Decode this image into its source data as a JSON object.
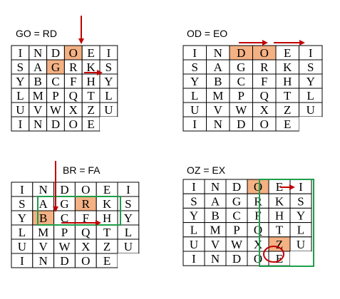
{
  "colors": {
    "highlight": "#F4B183",
    "arrow": "#C00000",
    "box": "#1E9E4A",
    "grid": "#000000"
  },
  "panels": [
    {
      "label": "GO = RD",
      "rows": [
        [
          "I",
          "N",
          "D",
          "O",
          "E",
          "I"
        ],
        [
          "S",
          "A",
          "G",
          "R",
          "K",
          "S"
        ],
        [
          "Y",
          "B",
          "C",
          "F",
          "H",
          "Y"
        ],
        [
          "L",
          "M",
          "P",
          "Q",
          "T",
          "L"
        ],
        [
          "U",
          "V",
          "W",
          "X",
          "Z",
          "U"
        ],
        [
          "I",
          "N",
          "D",
          "O",
          "E",
          ""
        ]
      ],
      "highlights": [
        [
          0,
          3
        ],
        [
          1,
          2
        ]
      ],
      "circled": []
    },
    {
      "label": "OD = EO",
      "rows": [
        [
          "I",
          "N",
          "D",
          "O",
          "E",
          "I"
        ],
        [
          "S",
          "A",
          "G",
          "R",
          "K",
          "S"
        ],
        [
          "Y",
          "B",
          "C",
          "F",
          "H",
          "Y"
        ],
        [
          "L",
          "M",
          "P",
          "Q",
          "T",
          "L"
        ],
        [
          "U",
          "V",
          "W",
          "X",
          "Z",
          "U"
        ],
        [
          "I",
          "N",
          "D",
          "O",
          "E",
          ""
        ]
      ],
      "highlights": [
        [
          0,
          2
        ],
        [
          0,
          3
        ]
      ],
      "circled": []
    },
    {
      "label": "BR = FA",
      "rows": [
        [
          "I",
          "N",
          "D",
          "O",
          "E",
          "I"
        ],
        [
          "S",
          "A",
          "G",
          "R",
          "K",
          "S"
        ],
        [
          "Y",
          "B",
          "C",
          "F",
          "H",
          "Y"
        ],
        [
          "L",
          "M",
          "P",
          "Q",
          "T",
          "L"
        ],
        [
          "U",
          "V",
          "W",
          "X",
          "Z",
          "U"
        ],
        [
          "I",
          "N",
          "D",
          "O",
          "E",
          ""
        ]
      ],
      "highlights": [
        [
          1,
          3
        ],
        [
          2,
          1
        ]
      ],
      "circled": []
    },
    {
      "label": "OZ = EX",
      "rows": [
        [
          "I",
          "N",
          "D",
          "O",
          "E",
          "I"
        ],
        [
          "S",
          "A",
          "G",
          "R",
          "K",
          "S"
        ],
        [
          "Y",
          "B",
          "C",
          "F",
          "H",
          "Y"
        ],
        [
          "L",
          "M",
          "P",
          "Q",
          "T",
          "L"
        ],
        [
          "U",
          "V",
          "W",
          "X",
          "Z",
          "U"
        ],
        [
          "I",
          "N",
          "D",
          "O",
          "E",
          ""
        ]
      ],
      "highlights": [
        [
          0,
          3
        ],
        [
          4,
          4
        ]
      ],
      "circled": [
        [
          4,
          3
        ]
      ]
    }
  ]
}
